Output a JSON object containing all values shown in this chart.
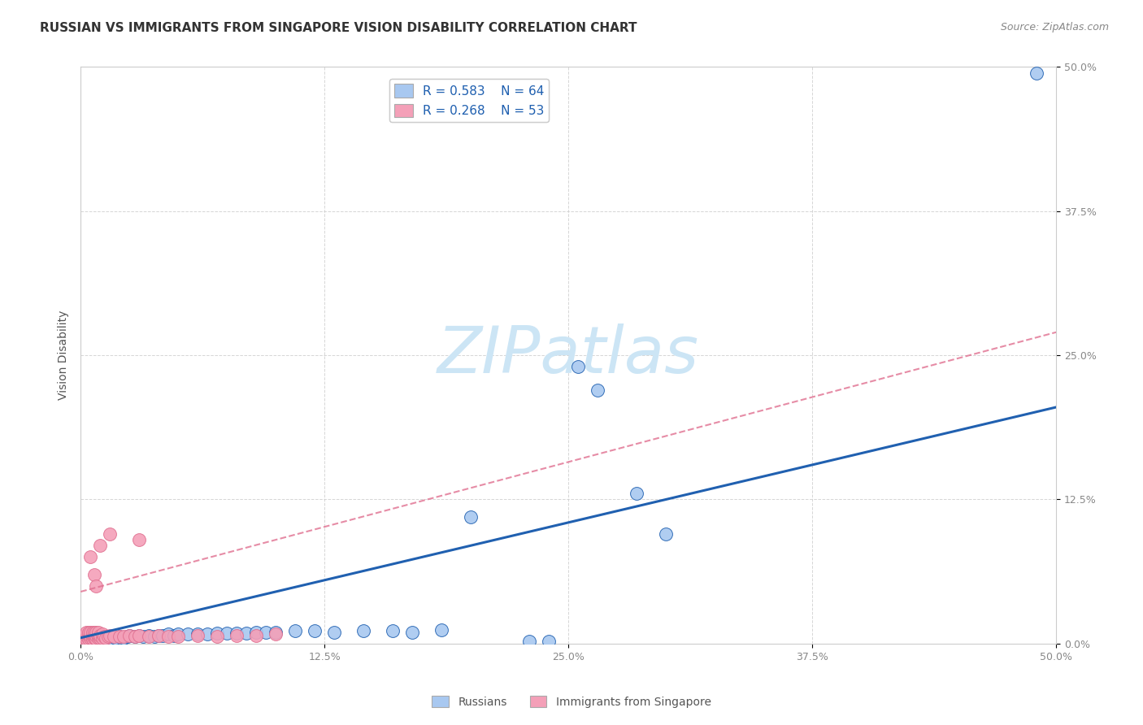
{
  "title": "RUSSIAN VS IMMIGRANTS FROM SINGAPORE VISION DISABILITY CORRELATION CHART",
  "source": "Source: ZipAtlas.com",
  "ylabel": "Vision Disability",
  "xlim": [
    0.0,
    0.5
  ],
  "ylim": [
    0.0,
    0.5
  ],
  "xtick_labels": [
    "0.0%",
    "12.5%",
    "25.0%",
    "37.5%",
    "50.0%"
  ],
  "ytick_labels": [
    "0.0%",
    "12.5%",
    "25.0%",
    "37.5%",
    "50.0%"
  ],
  "xtick_vals": [
    0.0,
    0.125,
    0.25,
    0.375,
    0.5
  ],
  "ytick_vals": [
    0.0,
    0.125,
    0.25,
    0.375,
    0.5
  ],
  "blue_R": 0.583,
  "blue_N": 64,
  "pink_R": 0.268,
  "pink_N": 53,
  "blue_color": "#a8c8f0",
  "pink_color": "#f4a0b8",
  "blue_line_color": "#2060b0",
  "pink_line_color": "#e07090",
  "blue_scatter": [
    [
      0.001,
      0.002
    ],
    [
      0.002,
      0.003
    ],
    [
      0.002,
      0.004
    ],
    [
      0.003,
      0.002
    ],
    [
      0.003,
      0.005
    ],
    [
      0.004,
      0.003
    ],
    [
      0.004,
      0.004
    ],
    [
      0.005,
      0.002
    ],
    [
      0.005,
      0.005
    ],
    [
      0.006,
      0.003
    ],
    [
      0.006,
      0.006
    ],
    [
      0.007,
      0.004
    ],
    [
      0.007,
      0.005
    ],
    [
      0.008,
      0.003
    ],
    [
      0.008,
      0.006
    ],
    [
      0.009,
      0.004
    ],
    [
      0.01,
      0.003
    ],
    [
      0.01,
      0.006
    ],
    [
      0.011,
      0.005
    ],
    [
      0.012,
      0.004
    ],
    [
      0.013,
      0.005
    ],
    [
      0.014,
      0.004
    ],
    [
      0.015,
      0.005
    ],
    [
      0.016,
      0.004
    ],
    [
      0.018,
      0.005
    ],
    [
      0.02,
      0.006
    ],
    [
      0.022,
      0.005
    ],
    [
      0.024,
      0.006
    ],
    [
      0.025,
      0.007
    ],
    [
      0.028,
      0.006
    ],
    [
      0.03,
      0.007
    ],
    [
      0.032,
      0.006
    ],
    [
      0.035,
      0.007
    ],
    [
      0.038,
      0.006
    ],
    [
      0.04,
      0.007
    ],
    [
      0.042,
      0.007
    ],
    [
      0.045,
      0.008
    ],
    [
      0.048,
      0.007
    ],
    [
      0.05,
      0.008
    ],
    [
      0.055,
      0.008
    ],
    [
      0.06,
      0.008
    ],
    [
      0.065,
      0.008
    ],
    [
      0.07,
      0.009
    ],
    [
      0.075,
      0.009
    ],
    [
      0.08,
      0.009
    ],
    [
      0.085,
      0.009
    ],
    [
      0.09,
      0.01
    ],
    [
      0.095,
      0.01
    ],
    [
      0.1,
      0.01
    ],
    [
      0.11,
      0.011
    ],
    [
      0.12,
      0.011
    ],
    [
      0.13,
      0.01
    ],
    [
      0.145,
      0.011
    ],
    [
      0.16,
      0.011
    ],
    [
      0.17,
      0.01
    ],
    [
      0.185,
      0.012
    ],
    [
      0.2,
      0.11
    ],
    [
      0.23,
      0.002
    ],
    [
      0.24,
      0.002
    ],
    [
      0.255,
      0.24
    ],
    [
      0.265,
      0.22
    ],
    [
      0.285,
      0.13
    ],
    [
      0.3,
      0.095
    ],
    [
      0.49,
      0.495
    ]
  ],
  "pink_scatter": [
    [
      0.001,
      0.003
    ],
    [
      0.002,
      0.004
    ],
    [
      0.002,
      0.007
    ],
    [
      0.003,
      0.004
    ],
    [
      0.003,
      0.007
    ],
    [
      0.003,
      0.01
    ],
    [
      0.004,
      0.004
    ],
    [
      0.004,
      0.007
    ],
    [
      0.004,
      0.01
    ],
    [
      0.005,
      0.005
    ],
    [
      0.005,
      0.007
    ],
    [
      0.005,
      0.01
    ],
    [
      0.006,
      0.004
    ],
    [
      0.006,
      0.007
    ],
    [
      0.006,
      0.01
    ],
    [
      0.007,
      0.005
    ],
    [
      0.007,
      0.007
    ],
    [
      0.007,
      0.01
    ],
    [
      0.008,
      0.004
    ],
    [
      0.008,
      0.007
    ],
    [
      0.008,
      0.01
    ],
    [
      0.009,
      0.005
    ],
    [
      0.009,
      0.007
    ],
    [
      0.009,
      0.01
    ],
    [
      0.01,
      0.005
    ],
    [
      0.01,
      0.007
    ],
    [
      0.011,
      0.005
    ],
    [
      0.011,
      0.008
    ],
    [
      0.012,
      0.006
    ],
    [
      0.013,
      0.005
    ],
    [
      0.014,
      0.006
    ],
    [
      0.015,
      0.007
    ],
    [
      0.017,
      0.006
    ],
    [
      0.02,
      0.006
    ],
    [
      0.022,
      0.006
    ],
    [
      0.025,
      0.007
    ],
    [
      0.028,
      0.006
    ],
    [
      0.03,
      0.007
    ],
    [
      0.035,
      0.006
    ],
    [
      0.04,
      0.007
    ],
    [
      0.045,
      0.006
    ],
    [
      0.05,
      0.006
    ],
    [
      0.06,
      0.007
    ],
    [
      0.07,
      0.006
    ],
    [
      0.08,
      0.007
    ],
    [
      0.09,
      0.007
    ],
    [
      0.1,
      0.008
    ],
    [
      0.03,
      0.09
    ],
    [
      0.015,
      0.095
    ],
    [
      0.01,
      0.085
    ],
    [
      0.005,
      0.075
    ],
    [
      0.007,
      0.06
    ],
    [
      0.008,
      0.05
    ]
  ],
  "background_color": "#ffffff",
  "grid_color": "#cccccc",
  "title_fontsize": 11,
  "axis_label_fontsize": 10,
  "tick_fontsize": 9,
  "legend_fontsize": 11,
  "watermark_text": "ZIPatlas",
  "watermark_color": "#cce5f5",
  "watermark_fontsize": 58
}
